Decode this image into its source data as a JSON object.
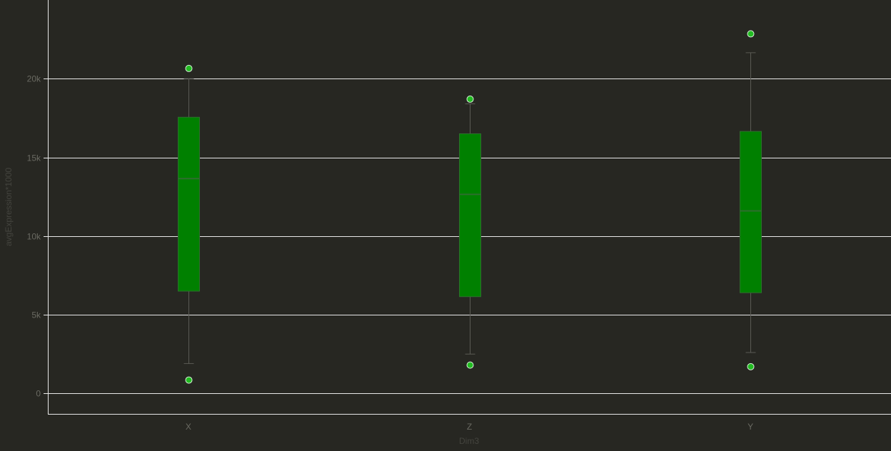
{
  "chart_data": {
    "type": "boxplot",
    "title": "",
    "xlabel": "Dim3",
    "ylabel": "avgExpression*1000",
    "ylim": [
      -1300,
      25000
    ],
    "y_ticks": [
      0,
      5000,
      10000,
      15000,
      20000
    ],
    "y_tick_labels": [
      "0",
      "5k",
      "10k",
      "15k",
      "20k"
    ],
    "grid": true,
    "categories": [
      "X",
      "Z",
      "Y"
    ],
    "boxes": [
      {
        "category": "X",
        "whisker_low": 1900,
        "q1": 6500,
        "median": 13650,
        "q3": 17550,
        "whisker_high": 20000,
        "outliers": [
          20650,
          850
        ]
      },
      {
        "category": "Z",
        "whisker_low": 2500,
        "q1": 6150,
        "median": 12650,
        "q3": 16500,
        "whisker_high": 18400,
        "outliers": [
          18700,
          1800
        ]
      },
      {
        "category": "Y",
        "whisker_low": 2600,
        "q1": 6400,
        "median": 11600,
        "q3": 16650,
        "whisker_high": 21650,
        "outliers": [
          22850,
          1700
        ]
      }
    ],
    "colors": {
      "background": "#272722",
      "box_fill": "#008000",
      "box_edge": "#2e6e2e",
      "whisker": "#5a5a54",
      "outlier_fill": "#22bb22",
      "outlier_edge": "#d8f0d8",
      "grid": "#e8e8e8",
      "axis": "#e8e8e8"
    }
  }
}
